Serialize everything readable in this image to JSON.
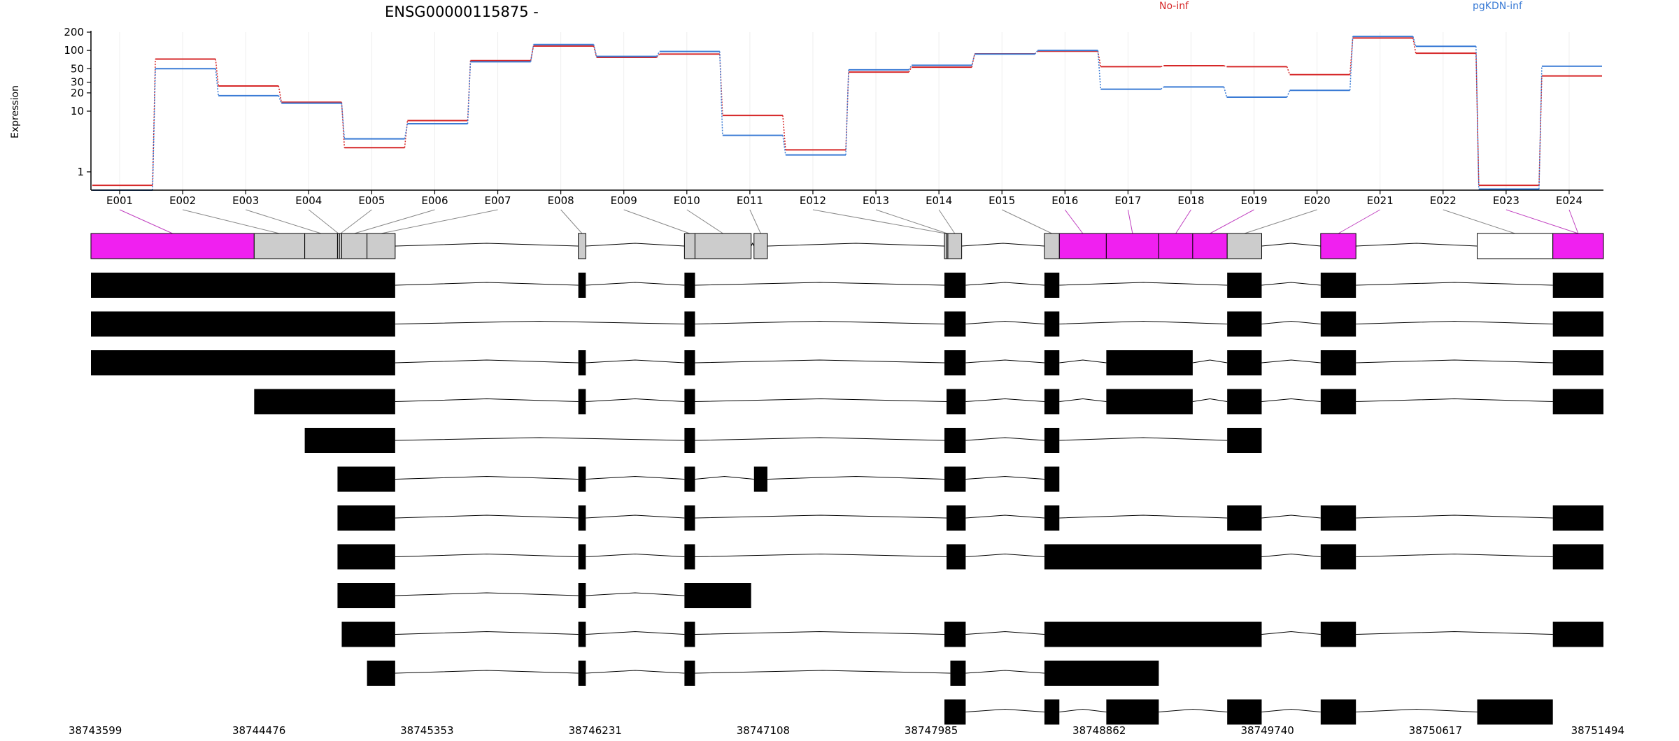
{
  "chart_data": {
    "type": "line",
    "title": "ENSG00000115875 -",
    "ylabel": "Expression",
    "yscale": "log",
    "ylim": [
      0.5,
      200
    ],
    "yticks": [
      {
        "v": 1,
        "label": "1"
      },
      {
        "v": 10,
        "label": "10"
      },
      {
        "v": 20,
        "label": "20"
      },
      {
        "v": 30,
        "label": "30"
      },
      {
        "v": 50,
        "label": "50"
      },
      {
        "v": 100,
        "label": "100"
      },
      {
        "v": 200,
        "label": "200"
      }
    ],
    "categories": [
      "E001",
      "E002",
      "E003",
      "E004",
      "E005",
      "E006",
      "E007",
      "E008",
      "E009",
      "E010",
      "E011",
      "E012",
      "E013",
      "E014",
      "E015",
      "E016",
      "E017",
      "E018",
      "E019",
      "E020",
      "E021",
      "E022",
      "E023",
      "E024"
    ],
    "series": [
      {
        "name": "No-inf",
        "color": "#d62728",
        "values": [
          0.6,
          72,
          26,
          14,
          2.5,
          7,
          68,
          118,
          77,
          87,
          8.5,
          2.3,
          44,
          53,
          88,
          97,
          54,
          56,
          54,
          40,
          160,
          90,
          0.6,
          38
        ]
      },
      {
        "name": "pgKDN-inf",
        "color": "#3a7bd5",
        "values": [
          0.5,
          50,
          18,
          13.5,
          3.5,
          6.2,
          65,
          125,
          80,
          96,
          4,
          1.9,
          48,
          57,
          87,
          100,
          23,
          25,
          17,
          22,
          170,
          117,
          0.52,
          55
        ]
      }
    ],
    "genome_ticks": [
      "38743599",
      "38744476",
      "38745353",
      "38746231",
      "38747108",
      "38747985",
      "38748862",
      "38749740",
      "38750617",
      "38751494"
    ],
    "genome_range": [
      38743599,
      38751494
    ],
    "exons": [
      {
        "id": "E001",
        "start": 38743599,
        "end": 38744451,
        "status": "significant"
      },
      {
        "id": "E002",
        "start": 38744451,
        "end": 38744715,
        "status": "normal"
      },
      {
        "id": "E003",
        "start": 38744715,
        "end": 38744886,
        "status": "normal"
      },
      {
        "id": "E004",
        "start": 38744886,
        "end": 38744896,
        "status": "normal"
      },
      {
        "id": "E005",
        "start": 38744896,
        "end": 38744908,
        "status": "normal"
      },
      {
        "id": "E006",
        "start": 38744908,
        "end": 38745040,
        "status": "normal"
      },
      {
        "id": "E007",
        "start": 38745040,
        "end": 38745187,
        "status": "normal"
      },
      {
        "id": "E008",
        "start": 38746143,
        "end": 38746182,
        "status": "normal"
      },
      {
        "id": "E009",
        "start": 38746697,
        "end": 38746752,
        "status": "normal"
      },
      {
        "id": "E010",
        "start": 38746752,
        "end": 38747045,
        "status": "normal"
      },
      {
        "id": "E011",
        "start": 38747060,
        "end": 38747130,
        "status": "normal"
      },
      {
        "id": "E012",
        "start": 38748054,
        "end": 38748065,
        "status": "normal"
      },
      {
        "id": "E013",
        "start": 38748065,
        "end": 38748072,
        "status": "normal"
      },
      {
        "id": "E014",
        "start": 38748072,
        "end": 38748144,
        "status": "normal"
      },
      {
        "id": "E015",
        "start": 38748576,
        "end": 38748654,
        "status": "normal"
      },
      {
        "id": "E016",
        "start": 38748654,
        "end": 38748899,
        "status": "significant"
      },
      {
        "id": "E017",
        "start": 38748899,
        "end": 38749173,
        "status": "significant"
      },
      {
        "id": "E018",
        "start": 38749173,
        "end": 38749350,
        "status": "significant"
      },
      {
        "id": "E019",
        "start": 38749350,
        "end": 38749530,
        "status": "significant"
      },
      {
        "id": "E020",
        "start": 38749530,
        "end": 38749710,
        "status": "normal"
      },
      {
        "id": "E021",
        "start": 38750018,
        "end": 38750202,
        "status": "significant"
      },
      {
        "id": "E022",
        "start": 38750835,
        "end": 38751230,
        "status": "excluded"
      },
      {
        "id": "E023",
        "start": 38751230,
        "end": 38751494,
        "status": "significant"
      },
      {
        "id": "E024",
        "start": 38751230,
        "end": 38751494,
        "status": "significant"
      }
    ],
    "exon_links": [
      0,
      1,
      2,
      3,
      4,
      5,
      6,
      7,
      8,
      9,
      10,
      11,
      12,
      13,
      14,
      15,
      16,
      17,
      18,
      19,
      20,
      21,
      22,
      23
    ],
    "status_colors": {
      "significant": "#f020f0",
      "normal": "#cccccc",
      "excluded": "#ffffff"
    },
    "transcripts": [
      [
        [
          38743599,
          38745187
        ],
        [
          38746143,
          38746182
        ],
        [
          38746697,
          38746752
        ],
        [
          38748054,
          38748165
        ],
        [
          38748576,
          38748654
        ],
        [
          38749530,
          38749710
        ],
        [
          38750018,
          38750202
        ],
        [
          38751230,
          38751494
        ]
      ],
      [
        [
          38743599,
          38745187
        ],
        [
          38746697,
          38746752
        ],
        [
          38748054,
          38748165
        ],
        [
          38748576,
          38748654
        ],
        [
          38749530,
          38749710
        ],
        [
          38750018,
          38750202
        ],
        [
          38751230,
          38751494
        ]
      ],
      [
        [
          38743599,
          38745187
        ],
        [
          38746143,
          38746182
        ],
        [
          38746697,
          38746752
        ],
        [
          38748054,
          38748165
        ],
        [
          38748576,
          38748654
        ],
        [
          38748899,
          38749350
        ],
        [
          38749530,
          38749710
        ],
        [
          38750018,
          38750202
        ],
        [
          38751230,
          38751494
        ]
      ],
      [
        [
          38744451,
          38745187
        ],
        [
          38746143,
          38746182
        ],
        [
          38746697,
          38746752
        ],
        [
          38748065,
          38748165
        ],
        [
          38748576,
          38748654
        ],
        [
          38748899,
          38749350
        ],
        [
          38749530,
          38749710
        ],
        [
          38750018,
          38750202
        ],
        [
          38751230,
          38751494
        ]
      ],
      [
        [
          38744715,
          38745187
        ],
        [
          38746697,
          38746752
        ],
        [
          38748054,
          38748165
        ],
        [
          38748576,
          38748654
        ],
        [
          38749530,
          38749710
        ]
      ],
      [
        [
          38744886,
          38745187
        ],
        [
          38746143,
          38746182
        ],
        [
          38746697,
          38746752
        ],
        [
          38747060,
          38747130
        ],
        [
          38748054,
          38748165
        ],
        [
          38748576,
          38748654
        ]
      ],
      [
        [
          38744886,
          38745187
        ],
        [
          38746143,
          38746182
        ],
        [
          38746697,
          38746752
        ],
        [
          38748065,
          38748165
        ],
        [
          38748576,
          38748654
        ],
        [
          38749530,
          38749710
        ],
        [
          38750018,
          38750202
        ],
        [
          38751230,
          38751494
        ]
      ],
      [
        [
          38744886,
          38745187
        ],
        [
          38746143,
          38746182
        ],
        [
          38746697,
          38746752
        ],
        [
          38748065,
          38748165
        ],
        [
          38748576,
          38749710
        ],
        [
          38750018,
          38750202
        ],
        [
          38751230,
          38751494
        ]
      ],
      [
        [
          38744886,
          38745187
        ],
        [
          38746143,
          38746182
        ],
        [
          38746697,
          38747045
        ]
      ],
      [
        [
          38744908,
          38745187
        ],
        [
          38746143,
          38746182
        ],
        [
          38746697,
          38746752
        ],
        [
          38748054,
          38748165
        ],
        [
          38748576,
          38749710
        ],
        [
          38750018,
          38750202
        ],
        [
          38751230,
          38751494
        ]
      ],
      [
        [
          38745040,
          38745187
        ],
        [
          38746143,
          38746182
        ],
        [
          38746697,
          38746752
        ],
        [
          38748085,
          38748165
        ],
        [
          38748576,
          38749173
        ]
      ],
      [
        [
          38748054,
          38748165
        ],
        [
          38748576,
          38748654
        ],
        [
          38748899,
          38749173
        ],
        [
          38749530,
          38749710
        ],
        [
          38750018,
          38750202
        ],
        [
          38750835,
          38751230
        ]
      ]
    ]
  }
}
